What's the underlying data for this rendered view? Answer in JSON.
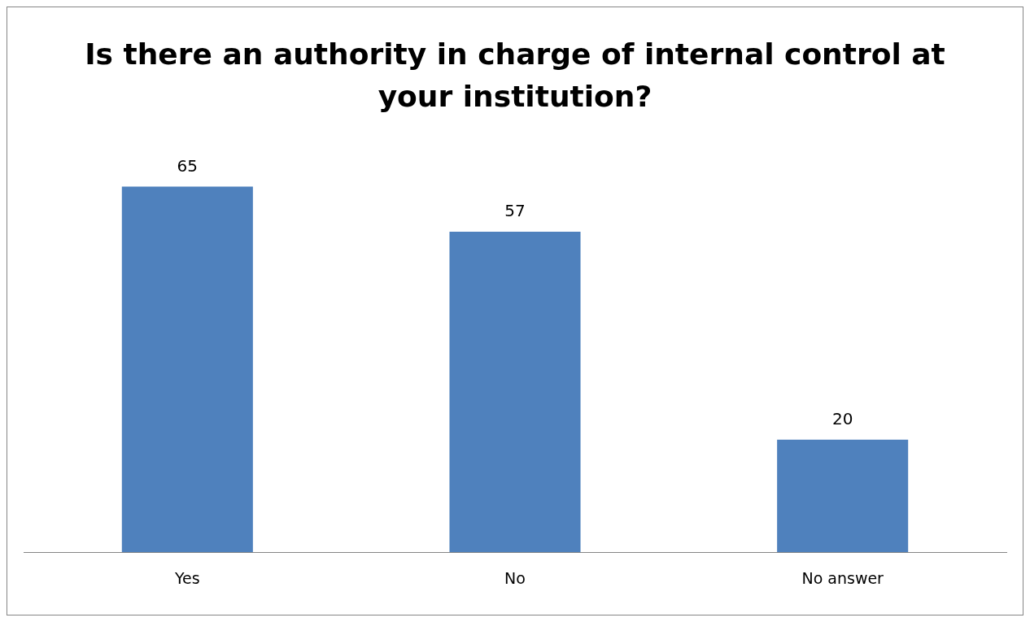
{
  "chart_data": {
    "type": "bar",
    "title": "Is there an authority in charge of internal control at your institution?",
    "categories": [
      "Yes",
      "No",
      "No answer"
    ],
    "values": [
      65,
      57,
      20
    ],
    "color": "#4f81bd",
    "data_labels": true,
    "grid": false,
    "legend": false
  }
}
